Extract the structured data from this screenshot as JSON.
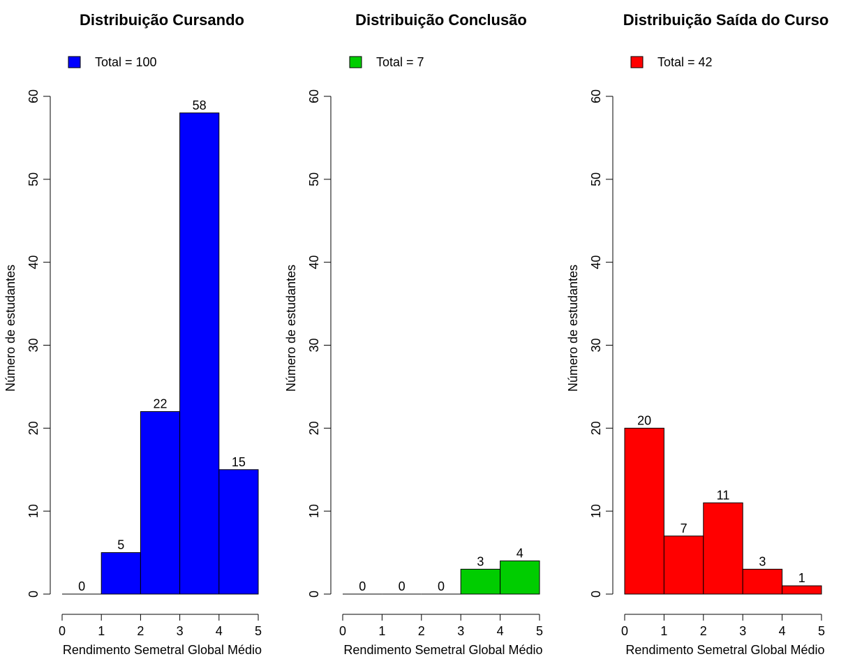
{
  "chart_data": [
    {
      "type": "bar",
      "title": "Distribuição Cursando",
      "legend": "Total = 100",
      "color": "#0000FF",
      "xlabel": "Rendimento Semetral Global Médio",
      "ylabel": "Número de estudantes",
      "bins": [
        [
          0,
          1
        ],
        [
          1,
          2
        ],
        [
          2,
          3
        ],
        [
          3,
          4
        ],
        [
          4,
          5
        ]
      ],
      "values": [
        0,
        5,
        22,
        58,
        15
      ],
      "xlim": [
        0,
        5
      ],
      "ylim": [
        0,
        60
      ],
      "xticks": [
        0,
        1,
        2,
        3,
        4,
        5
      ],
      "yticks": [
        0,
        10,
        20,
        30,
        40,
        50,
        60
      ]
    },
    {
      "type": "bar",
      "title": "Distribuição Conclusão",
      "legend": "Total = 7",
      "color": "#00CD00",
      "xlabel": "Rendimento Semetral Global Médio",
      "ylabel": "Número de estudantes",
      "bins": [
        [
          0,
          1
        ],
        [
          1,
          2
        ],
        [
          2,
          3
        ],
        [
          3,
          4
        ],
        [
          4,
          5
        ]
      ],
      "values": [
        0,
        0,
        0,
        3,
        4
      ],
      "xlim": [
        0,
        5
      ],
      "ylim": [
        0,
        60
      ],
      "xticks": [
        0,
        1,
        2,
        3,
        4,
        5
      ],
      "yticks": [
        0,
        10,
        20,
        30,
        40,
        50,
        60
      ]
    },
    {
      "type": "bar",
      "title": "Distribuição Saída do Curso",
      "legend": "Total = 42",
      "color": "#FF0000",
      "xlabel": "Rendimento Semetral Global Médio",
      "ylabel": "Número de estudantes",
      "bins": [
        [
          0,
          1
        ],
        [
          1,
          2
        ],
        [
          2,
          3
        ],
        [
          3,
          4
        ],
        [
          4,
          5
        ]
      ],
      "values": [
        20,
        7,
        11,
        3,
        1
      ],
      "xlim": [
        0,
        5
      ],
      "ylim": [
        0,
        60
      ],
      "xticks": [
        0,
        1,
        2,
        3,
        4,
        5
      ],
      "yticks": [
        0,
        10,
        20,
        30,
        40,
        50,
        60
      ]
    }
  ]
}
